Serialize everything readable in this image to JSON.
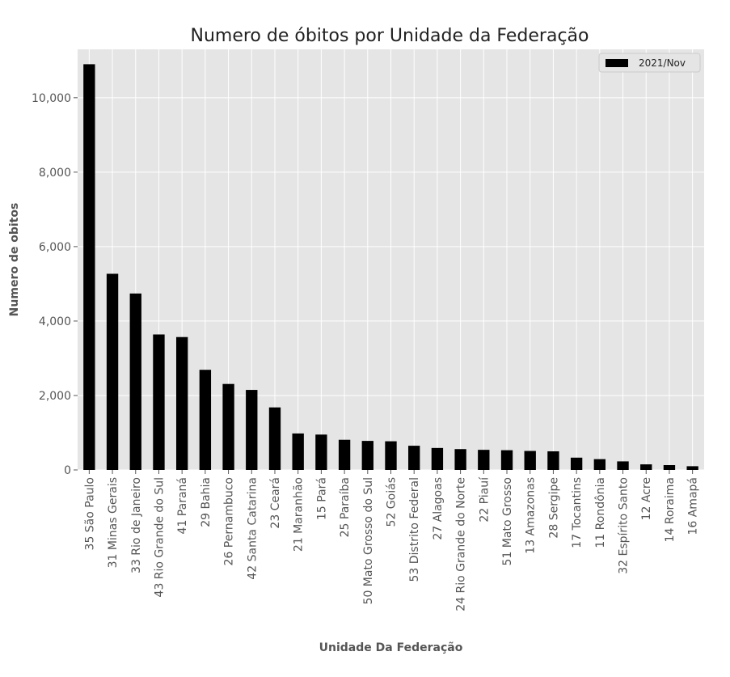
{
  "chart_data": {
    "type": "bar",
    "title": "Numero de óbitos por Unidade da Federação",
    "xlabel": "Unidade Da Federação",
    "ylabel": "Numero de obitos",
    "ylim": [
      0,
      11300
    ],
    "yticks": [
      0,
      2000,
      4000,
      6000,
      8000,
      10000
    ],
    "ytick_labels": [
      "0",
      "2,000",
      "4,000",
      "6,000",
      "8,000",
      "10,000"
    ],
    "grid": true,
    "legend_position": "top-right",
    "colors": {
      "bar": "#000000",
      "plot_bg": "#e5e5e5",
      "grid": "#ffffff"
    },
    "categories": [
      "35 São Paulo",
      "31 Minas Gerais",
      "33 Rio de Janeiro",
      "43 Rio Grande do Sul",
      "41 Paraná",
      "29 Bahia",
      "26 Pernambuco",
      "42 Santa Catarina",
      "23 Ceará",
      "21 Maranhão",
      "15 Pará",
      "25 Paraíba",
      "50 Mato Grosso do Sul",
      "52 Goiás",
      "53 Distrito Federal",
      "27 Alagoas",
      "24 Rio Grande do Norte",
      "22 Piauí",
      "51 Mato Grosso",
      "13 Amazonas",
      "28 Sergipe",
      "17 Tocantins",
      "11 Rondônia",
      "32 Espírito Santo",
      "12 Acre",
      "14 Roraima",
      "16 Amapá"
    ],
    "series": [
      {
        "name": "2021/Nov",
        "values": [
          10900,
          5270,
          4740,
          3640,
          3570,
          2690,
          2310,
          2150,
          1680,
          980,
          950,
          810,
          780,
          770,
          650,
          590,
          560,
          540,
          530,
          510,
          500,
          330,
          290,
          230,
          150,
          130,
          100
        ]
      }
    ]
  }
}
